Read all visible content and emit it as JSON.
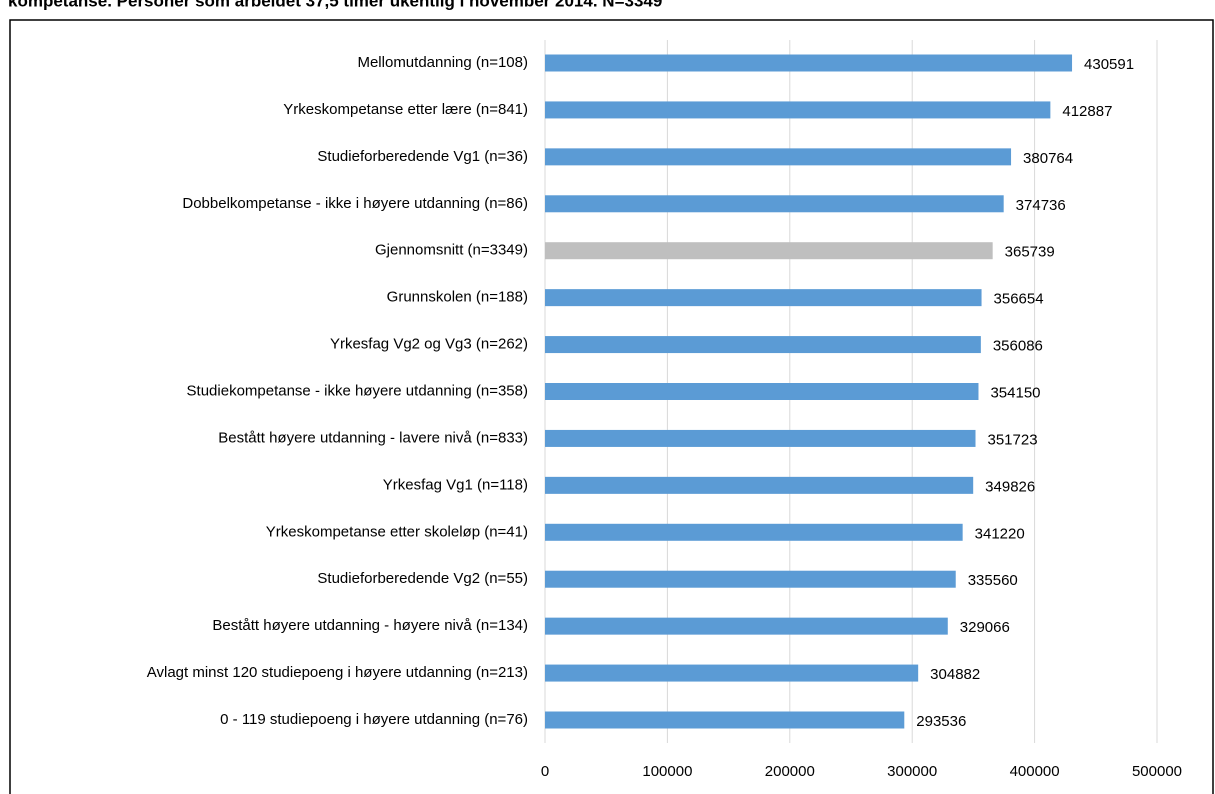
{
  "chart_data": {
    "type": "barh",
    "title": "kompetanse. Personer som arbeidet 37,5 timer ukentlig i november 2014. N=3349",
    "categories": [
      "Mellomutdanning (n=108)",
      "Yrkeskompetanse etter lære (n=841)",
      "Studieforberedende Vg1 (n=36)",
      "Dobbelkompetanse - ikke i høyere utdanning (n=86)",
      "Gjennomsnitt (n=3349)",
      "Grunnskolen (n=188)",
      "Yrkesfag Vg2 og Vg3 (n=262)",
      "Studiekompetanse - ikke høyere utdanning (n=358)",
      "Bestått høyere utdanning - lavere nivå (n=833)",
      "Yrkesfag Vg1 (n=118)",
      "Yrkeskompetanse etter skoleløp (n=41)",
      "Studieforberedende Vg2 (n=55)",
      "Bestått høyere utdanning - høyere nivå (n=134)",
      "Avlagt minst 120 studiepoeng i høyere utdanning (n=213)",
      "0 - 119 studiepoeng i høyere utdanning (n=76)"
    ],
    "values": [
      430591,
      412887,
      380764,
      374736,
      365739,
      356654,
      356086,
      354150,
      351723,
      349826,
      341220,
      335560,
      329066,
      304882,
      293536
    ],
    "colors": [
      "#5b9bd5",
      "#5b9bd5",
      "#5b9bd5",
      "#5b9bd5",
      "#bfbfbf",
      "#5b9bd5",
      "#5b9bd5",
      "#5b9bd5",
      "#5b9bd5",
      "#5b9bd5",
      "#5b9bd5",
      "#5b9bd5",
      "#5b9bd5",
      "#5b9bd5",
      "#5b9bd5"
    ],
    "xlim": [
      0,
      500000
    ],
    "xticks": [
      0,
      100000,
      200000,
      300000,
      400000,
      500000
    ],
    "grid": true
  }
}
